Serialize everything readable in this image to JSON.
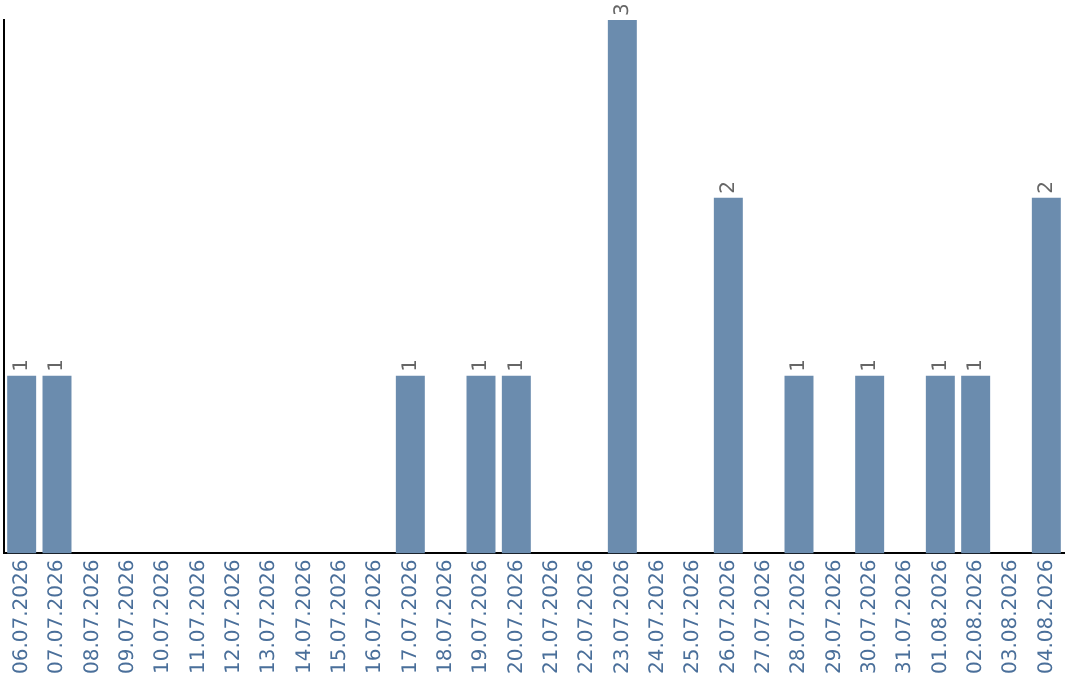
{
  "chart_data": {
    "type": "bar",
    "categories": [
      "06.07.2026",
      "07.07.2026",
      "08.07.2026",
      "09.07.2026",
      "10.07.2026",
      "11.07.2026",
      "12.07.2026",
      "13.07.2026",
      "14.07.2026",
      "15.07.2026",
      "16.07.2026",
      "17.07.2026",
      "18.07.2026",
      "19.07.2026",
      "20.07.2026",
      "21.07.2026",
      "22.07.2026",
      "23.07.2026",
      "24.07.2026",
      "25.07.2026",
      "26.07.2026",
      "27.07.2026",
      "28.07.2026",
      "29.07.2026",
      "30.07.2026",
      "31.07.2026",
      "01.08.2026",
      "02.08.2026",
      "03.08.2026",
      "04.08.2026"
    ],
    "values": [
      1,
      1,
      0,
      0,
      0,
      0,
      0,
      0,
      0,
      0,
      0,
      1,
      0,
      1,
      1,
      0,
      0,
      3,
      0,
      0,
      2,
      0,
      1,
      0,
      1,
      0,
      1,
      1,
      0,
      2
    ],
    "color": "#6b8cae",
    "value_labels": [
      "1",
      "1",
      null,
      null,
      null,
      null,
      null,
      null,
      null,
      null,
      null,
      "1",
      null,
      "1",
      "1",
      null,
      null,
      "3",
      null,
      null,
      "2",
      null,
      "1",
      null,
      "1",
      null,
      "1",
      "1",
      null,
      "2"
    ],
    "tick_labels": "x",
    "grid": false,
    "legend": false
  }
}
